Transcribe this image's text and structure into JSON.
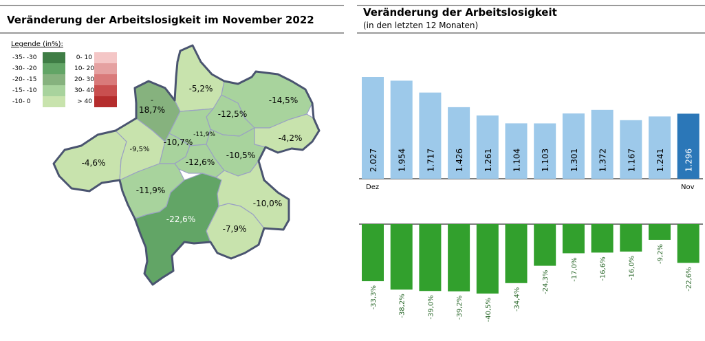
{
  "left_panel": {
    "title": "Veränderung der Arbeitslosigkeit im November 2022",
    "legend": {
      "title": "Legende (in%):",
      "negative": [
        {
          "label": "-35- -30",
          "color": "#3f7d45"
        },
        {
          "label": "-30- -20",
          "color": "#62a566"
        },
        {
          "label": "-20- -15",
          "color": "#86b27e"
        },
        {
          "label": "-15- -10",
          "color": "#a8d39d"
        },
        {
          "label": "-10- 0",
          "color": "#c8e3ad"
        }
      ],
      "positive": [
        {
          "label": "0- 10",
          "color": "#f4c6c6"
        },
        {
          "label": "10- 20",
          "color": "#e5a1a1"
        },
        {
          "label": "20- 30",
          "color": "#d97a7a"
        },
        {
          "label": "30- 40",
          "color": "#c94f4f"
        },
        {
          "label": "> 40",
          "color": "#b52d2d"
        }
      ]
    },
    "map_labels": [
      {
        "id": "nw",
        "text": "18,7%"
      },
      {
        "id": "n1",
        "text": "-5,2%"
      },
      {
        "id": "ne1",
        "text": "-14,5%"
      },
      {
        "id": "n2",
        "text": "-12,5%"
      },
      {
        "id": "c1",
        "text": "-11,9%"
      },
      {
        "id": "c2",
        "text": "-10,7%"
      },
      {
        "id": "w2",
        "text": "-9,5%"
      },
      {
        "id": "e1",
        "text": "-4,2%"
      },
      {
        "id": "c3",
        "text": "-10,5%"
      },
      {
        "id": "c4",
        "text": "-12,6%"
      },
      {
        "id": "w1",
        "text": "-4,6%"
      },
      {
        "id": "sw",
        "text": "-11,9%"
      },
      {
        "id": "s1",
        "text": "-22,6%"
      },
      {
        "id": "se1",
        "text": "-10,0%"
      },
      {
        "id": "se2",
        "text": "-7,9%"
      }
    ]
  },
  "right_panel": {
    "title": "Veränderung der Arbeitslosigkeit",
    "subtitle": "(in den letzten 12 Monaten)"
  },
  "chart_data": [
    {
      "type": "bar",
      "title": "Veränderung der Arbeitslosigkeit",
      "subtitle": "(in den letzten 12 Monaten)",
      "x_start_label": "Dez",
      "x_end_label": "Nov",
      "values": [
        2027,
        1954,
        1717,
        1426,
        1261,
        1104,
        1103,
        1301,
        1372,
        1167,
        1241,
        1296
      ],
      "value_labels": [
        "2.027",
        "1.954",
        "1.717",
        "1.426",
        "1.261",
        "1.104",
        "1.103",
        "1.301",
        "1.372",
        "1.167",
        "1.241",
        "1.296"
      ],
      "colors": {
        "normal": "#9dc9ea",
        "highlight": "#2b77b8"
      },
      "highlight_index": 11
    },
    {
      "type": "bar",
      "values": [
        -33.3,
        -38.2,
        -39.0,
        -39.2,
        -40.5,
        -34.4,
        -24.3,
        -17.0,
        -16.6,
        -16.0,
        -9.2,
        -22.6
      ],
      "value_labels": [
        "-33,3%",
        "-38,2%",
        "-39,0%",
        "-39,2%",
        "-40,5%",
        "-34,4%",
        "-24,3%",
        "-17,0%",
        "-16,6%",
        "-16,0%",
        "-9,2%",
        "-22,6%"
      ],
      "colors": {
        "bar": "#32a02d",
        "label": "#2d6a2d"
      }
    }
  ]
}
